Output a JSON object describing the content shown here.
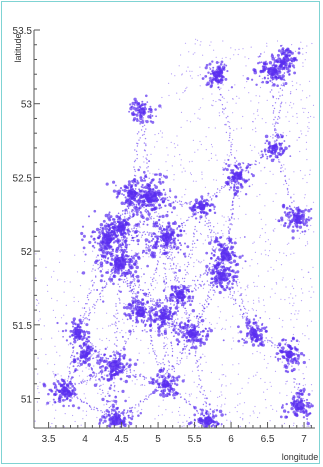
{
  "chart_data": {
    "type": "scatter",
    "xlabel": "longitude",
    "ylabel": "latitude",
    "xlim": [
      3.3,
      7.15
    ],
    "ylim": [
      50.8,
      53.5
    ],
    "x_ticks": [
      3.5,
      4,
      4.5,
      5,
      5.5,
      6,
      6.5,
      7
    ],
    "x_tick_labels": [
      "3.5",
      "4",
      "4.5",
      "5",
      "5.5",
      "6",
      "6.5",
      "7"
    ],
    "y_ticks": [
      51,
      51.5,
      52,
      52.5,
      53,
      53.5
    ],
    "y_tick_labels": [
      "51",
      "51.5",
      "52",
      "52.5",
      "53",
      "53.5"
    ],
    "grid": false,
    "point_color": "#5a2df0",
    "clusters": [
      {
        "x": 4.9,
        "y": 52.37,
        "weight": 1.0
      },
      {
        "x": 4.48,
        "y": 51.92,
        "weight": 1.0
      },
      {
        "x": 4.3,
        "y": 52.08,
        "weight": 0.8
      },
      {
        "x": 5.12,
        "y": 52.09,
        "weight": 0.8
      },
      {
        "x": 4.64,
        "y": 52.39,
        "weight": 0.6
      },
      {
        "x": 4.5,
        "y": 52.16,
        "weight": 0.5
      },
      {
        "x": 4.4,
        "y": 51.22,
        "weight": 0.7
      },
      {
        "x": 4.43,
        "y": 50.85,
        "weight": 0.7
      },
      {
        "x": 5.47,
        "y": 51.44,
        "weight": 0.6
      },
      {
        "x": 5.69,
        "y": 50.85,
        "weight": 0.5
      },
      {
        "x": 5.92,
        "y": 51.98,
        "weight": 0.6
      },
      {
        "x": 5.87,
        "y": 51.83,
        "weight": 0.5
      },
      {
        "x": 6.56,
        "y": 53.22,
        "weight": 0.6
      },
      {
        "x": 6.9,
        "y": 52.22,
        "weight": 0.5
      },
      {
        "x": 6.09,
        "y": 52.51,
        "weight": 0.4
      },
      {
        "x": 5.8,
        "y": 53.2,
        "weight": 0.4
      },
      {
        "x": 4.76,
        "y": 51.58,
        "weight": 0.5
      },
      {
        "x": 5.08,
        "y": 51.56,
        "weight": 0.4
      },
      {
        "x": 6.95,
        "y": 50.95,
        "weight": 0.5
      },
      {
        "x": 3.72,
        "y": 51.05,
        "weight": 0.5
      },
      {
        "x": 6.3,
        "y": 51.45,
        "weight": 0.4
      },
      {
        "x": 6.8,
        "y": 51.3,
        "weight": 0.4
      },
      {
        "x": 5.3,
        "y": 51.7,
        "weight": 0.4
      },
      {
        "x": 4.78,
        "y": 52.95,
        "weight": 0.3
      },
      {
        "x": 5.6,
        "y": 52.3,
        "weight": 0.3
      },
      {
        "x": 6.6,
        "y": 52.7,
        "weight": 0.3
      },
      {
        "x": 6.75,
        "y": 53.3,
        "weight": 0.3
      },
      {
        "x": 5.1,
        "y": 51.1,
        "weight": 0.4
      },
      {
        "x": 3.9,
        "y": 51.45,
        "weight": 0.3
      },
      {
        "x": 4.0,
        "y": 51.3,
        "weight": 0.3
      }
    ]
  }
}
